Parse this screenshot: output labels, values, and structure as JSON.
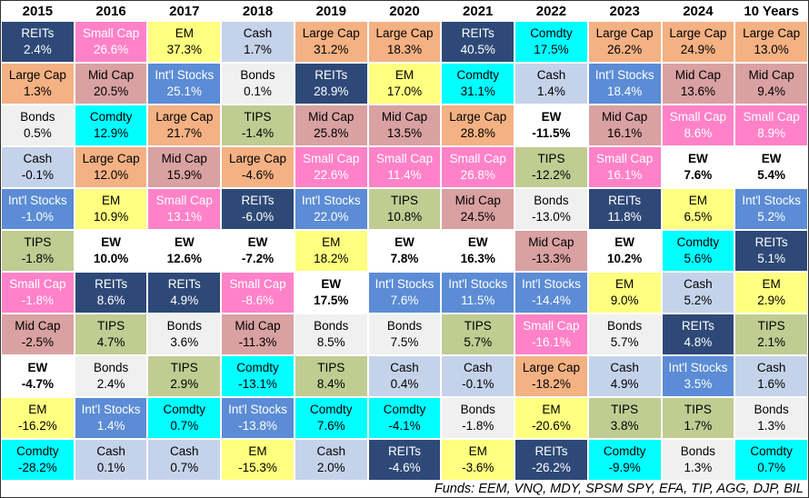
{
  "chart_data": {
    "type": "table",
    "columns": [
      "2015",
      "2016",
      "2017",
      "2018",
      "2019",
      "2020",
      "2021",
      "2022",
      "2023",
      "2024",
      "10 Years"
    ],
    "asset_classes": {
      "REITs": {
        "bg": "#2E4977",
        "text": "#FFFFFF",
        "bold": false
      },
      "Small Cap": {
        "bg": "#FF82C8",
        "text": "#FFFFFF",
        "bold": false
      },
      "EM": {
        "bg": "#FFFF80",
        "text": "#000000",
        "bold": false
      },
      "Cash": {
        "bg": "#C5D3EA",
        "text": "#000000",
        "bold": false
      },
      "Large Cap": {
        "bg": "#F4B183",
        "text": "#000000",
        "bold": false
      },
      "Mid Cap": {
        "bg": "#D9A1A1",
        "text": "#000000",
        "bold": false
      },
      "Bonds": {
        "bg": "#F0F0F0",
        "text": "#000000",
        "bold": false
      },
      "Comdty": {
        "bg": "#00FFFF",
        "text": "#000000",
        "bold": false
      },
      "Int'l Stocks": {
        "bg": "#5B8CD5",
        "text": "#FFFFFF",
        "bold": false
      },
      "TIPS": {
        "bg": "#C0CC92",
        "text": "#000000",
        "bold": false
      },
      "EW": {
        "bg": "#FFFFFF",
        "text": "#000000",
        "bold": true
      }
    },
    "rows": [
      [
        {
          "asset": "REITs",
          "value": "2.4%"
        },
        {
          "asset": "Small Cap",
          "value": "26.6%"
        },
        {
          "asset": "EM",
          "value": "37.3%"
        },
        {
          "asset": "Cash",
          "value": "1.7%"
        },
        {
          "asset": "Large Cap",
          "value": "31.2%"
        },
        {
          "asset": "Large Cap",
          "value": "18.3%"
        },
        {
          "asset": "REITs",
          "value": "40.5%"
        },
        {
          "asset": "Comdty",
          "value": "17.5%"
        },
        {
          "asset": "Large Cap",
          "value": "26.2%"
        },
        {
          "asset": "Large Cap",
          "value": "24.9%"
        },
        {
          "asset": "Large Cap",
          "value": "13.0%"
        }
      ],
      [
        {
          "asset": "Large Cap",
          "value": "1.3%"
        },
        {
          "asset": "Mid Cap",
          "value": "20.5%"
        },
        {
          "asset": "Int'l Stocks",
          "value": "25.1%"
        },
        {
          "asset": "Bonds",
          "value": "0.1%"
        },
        {
          "asset": "REITs",
          "value": "28.9%"
        },
        {
          "asset": "EM",
          "value": "17.0%"
        },
        {
          "asset": "Comdty",
          "value": "31.1%"
        },
        {
          "asset": "Cash",
          "value": "1.4%"
        },
        {
          "asset": "Int'l Stocks",
          "value": "18.4%"
        },
        {
          "asset": "Mid Cap",
          "value": "13.6%"
        },
        {
          "asset": "Mid Cap",
          "value": "9.4%"
        }
      ],
      [
        {
          "asset": "Bonds",
          "value": "0.5%"
        },
        {
          "asset": "Comdty",
          "value": "12.9%"
        },
        {
          "asset": "Large Cap",
          "value": "21.7%"
        },
        {
          "asset": "TIPS",
          "value": "-1.4%"
        },
        {
          "asset": "Mid Cap",
          "value": "25.8%"
        },
        {
          "asset": "Mid Cap",
          "value": "13.5%"
        },
        {
          "asset": "Large Cap",
          "value": "28.8%"
        },
        {
          "asset": "EW",
          "value": "-11.5%"
        },
        {
          "asset": "Mid Cap",
          "value": "16.1%"
        },
        {
          "asset": "Small Cap",
          "value": "8.6%"
        },
        {
          "asset": "Small Cap",
          "value": "8.9%"
        }
      ],
      [
        {
          "asset": "Cash",
          "value": "-0.1%"
        },
        {
          "asset": "Large Cap",
          "value": "12.0%"
        },
        {
          "asset": "Mid Cap",
          "value": "15.9%"
        },
        {
          "asset": "Large Cap",
          "value": "-4.6%"
        },
        {
          "asset": "Small Cap",
          "value": "22.6%"
        },
        {
          "asset": "Small Cap",
          "value": "11.4%"
        },
        {
          "asset": "Small Cap",
          "value": "26.8%"
        },
        {
          "asset": "TIPS",
          "value": "-12.2%"
        },
        {
          "asset": "Small Cap",
          "value": "16.1%"
        },
        {
          "asset": "EW",
          "value": "7.6%"
        },
        {
          "asset": "EW",
          "value": "5.4%"
        }
      ],
      [
        {
          "asset": "Int'l Stocks",
          "value": "-1.0%"
        },
        {
          "asset": "EM",
          "value": "10.9%"
        },
        {
          "asset": "Small Cap",
          "value": "13.1%"
        },
        {
          "asset": "REITs",
          "value": "-6.0%"
        },
        {
          "asset": "Int'l Stocks",
          "value": "22.0%"
        },
        {
          "asset": "TIPS",
          "value": "10.8%"
        },
        {
          "asset": "Mid Cap",
          "value": "24.5%"
        },
        {
          "asset": "Bonds",
          "value": "-13.0%"
        },
        {
          "asset": "REITs",
          "value": "11.8%"
        },
        {
          "asset": "EM",
          "value": "6.5%"
        },
        {
          "asset": "Int'l Stocks",
          "value": "5.2%"
        }
      ],
      [
        {
          "asset": "TIPS",
          "value": "-1.8%"
        },
        {
          "asset": "EW",
          "value": "10.0%"
        },
        {
          "asset": "EW",
          "value": "12.6%"
        },
        {
          "asset": "EW",
          "value": "-7.2%"
        },
        {
          "asset": "EM",
          "value": "18.2%"
        },
        {
          "asset": "EW",
          "value": "7.8%"
        },
        {
          "asset": "EW",
          "value": "16.3%"
        },
        {
          "asset": "Mid Cap",
          "value": "-13.3%"
        },
        {
          "asset": "EW",
          "value": "10.2%"
        },
        {
          "asset": "Comdty",
          "value": "5.6%"
        },
        {
          "asset": "REITs",
          "value": "5.1%"
        }
      ],
      [
        {
          "asset": "Small Cap",
          "value": "-1.8%"
        },
        {
          "asset": "REITs",
          "value": "8.6%"
        },
        {
          "asset": "REITs",
          "value": "4.9%"
        },
        {
          "asset": "Small Cap",
          "value": "-8.6%"
        },
        {
          "asset": "EW",
          "value": "17.5%"
        },
        {
          "asset": "Int'l Stocks",
          "value": "7.6%"
        },
        {
          "asset": "Int'l Stocks",
          "value": "11.5%"
        },
        {
          "asset": "Int'l Stocks",
          "value": "-14.4%"
        },
        {
          "asset": "EM",
          "value": "9.0%"
        },
        {
          "asset": "Cash",
          "value": "5.2%"
        },
        {
          "asset": "EM",
          "value": "2.9%"
        }
      ],
      [
        {
          "asset": "Mid Cap",
          "value": "-2.5%"
        },
        {
          "asset": "TIPS",
          "value": "4.7%"
        },
        {
          "asset": "Bonds",
          "value": "3.6%"
        },
        {
          "asset": "Mid Cap",
          "value": "-11.3%"
        },
        {
          "asset": "Bonds",
          "value": "8.5%"
        },
        {
          "asset": "Bonds",
          "value": "7.5%"
        },
        {
          "asset": "TIPS",
          "value": "5.7%"
        },
        {
          "asset": "Small Cap",
          "value": "-16.1%"
        },
        {
          "asset": "Bonds",
          "value": "5.7%"
        },
        {
          "asset": "REITs",
          "value": "4.8%"
        },
        {
          "asset": "TIPS",
          "value": "2.1%"
        }
      ],
      [
        {
          "asset": "EW",
          "value": "-4.7%"
        },
        {
          "asset": "Bonds",
          "value": "2.4%"
        },
        {
          "asset": "TIPS",
          "value": "2.9%"
        },
        {
          "asset": "Comdty",
          "value": "-13.1%"
        },
        {
          "asset": "TIPS",
          "value": "8.4%"
        },
        {
          "asset": "Cash",
          "value": "0.4%"
        },
        {
          "asset": "Cash",
          "value": "-0.1%"
        },
        {
          "asset": "Large Cap",
          "value": "-18.2%"
        },
        {
          "asset": "Cash",
          "value": "4.9%"
        },
        {
          "asset": "Int'l Stocks",
          "value": "3.5%"
        },
        {
          "asset": "Cash",
          "value": "1.6%"
        }
      ],
      [
        {
          "asset": "EM",
          "value": "-16.2%"
        },
        {
          "asset": "Int'l Stocks",
          "value": "1.4%"
        },
        {
          "asset": "Comdty",
          "value": "0.7%"
        },
        {
          "asset": "Int'l Stocks",
          "value": "-13.8%"
        },
        {
          "asset": "Comdty",
          "value": "7.6%"
        },
        {
          "asset": "Comdty",
          "value": "-4.1%"
        },
        {
          "asset": "Bonds",
          "value": "-1.8%"
        },
        {
          "asset": "EM",
          "value": "-20.6%"
        },
        {
          "asset": "TIPS",
          "value": "3.8%"
        },
        {
          "asset": "TIPS",
          "value": "1.7%"
        },
        {
          "asset": "Bonds",
          "value": "1.3%"
        }
      ],
      [
        {
          "asset": "Comdty",
          "value": "-28.2%"
        },
        {
          "asset": "Cash",
          "value": "0.1%"
        },
        {
          "asset": "Cash",
          "value": "0.7%"
        },
        {
          "asset": "EM",
          "value": "-15.3%"
        },
        {
          "asset": "Cash",
          "value": "2.0%"
        },
        {
          "asset": "REITs",
          "value": "-4.6%"
        },
        {
          "asset": "EM",
          "value": "-3.6%"
        },
        {
          "asset": "REITs",
          "value": "-26.2%"
        },
        {
          "asset": "Comdty",
          "value": "-9.9%"
        },
        {
          "asset": "Bonds",
          "value": "1.3%"
        },
        {
          "asset": "Comdty",
          "value": "0.7%"
        }
      ]
    ],
    "footnote": "Funds: EEM, VNQ, MDY, SPSM SPY, EFA, TIP, AGG, DJP, BIL"
  }
}
